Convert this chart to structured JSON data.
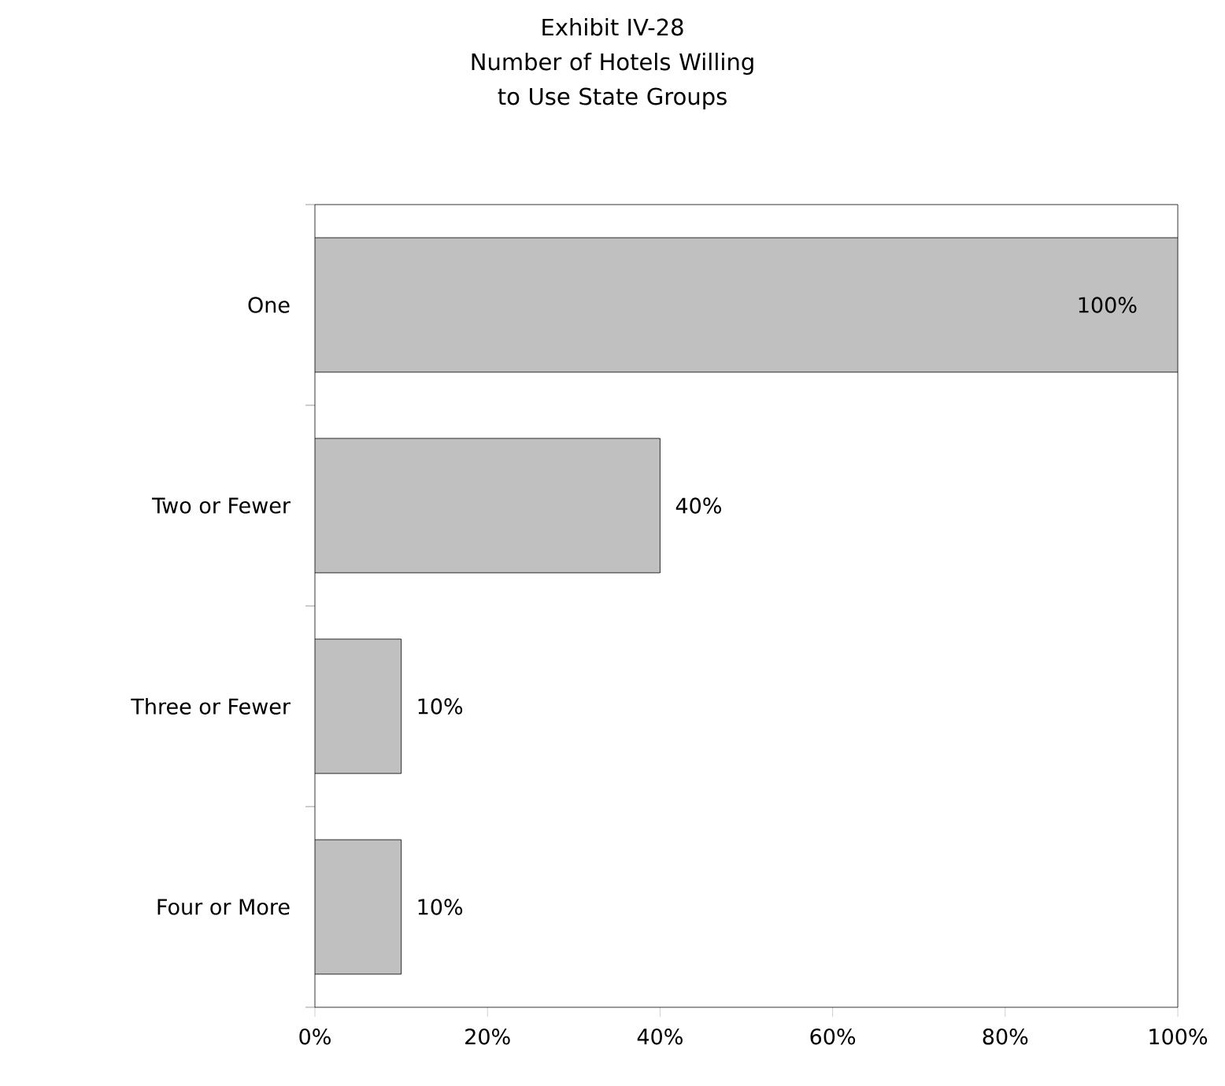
{
  "chart_data": {
    "type": "bar",
    "orientation": "horizontal",
    "title": "Exhibit IV-28",
    "subtitle": "Number of Hotels Willing to Use State Groups",
    "categories": [
      "One",
      "Two or Fewer",
      "Three or Fewer",
      "Four or More"
    ],
    "values": [
      100,
      40,
      10,
      10
    ],
    "color": "#c0c0c0",
    "value_labels": [
      "100%",
      "40%",
      "10%",
      "10%"
    ],
    "xlim": [
      0,
      100
    ],
    "xticks": [
      {
        "value": 0,
        "label": "0%"
      },
      {
        "value": 20,
        "label": "20%"
      },
      {
        "value": 40,
        "label": "40%"
      },
      {
        "value": 60,
        "label": "60%"
      },
      {
        "value": 80,
        "label": "80%"
      },
      {
        "value": 100,
        "label": "100%"
      }
    ],
    "grid": false
  }
}
